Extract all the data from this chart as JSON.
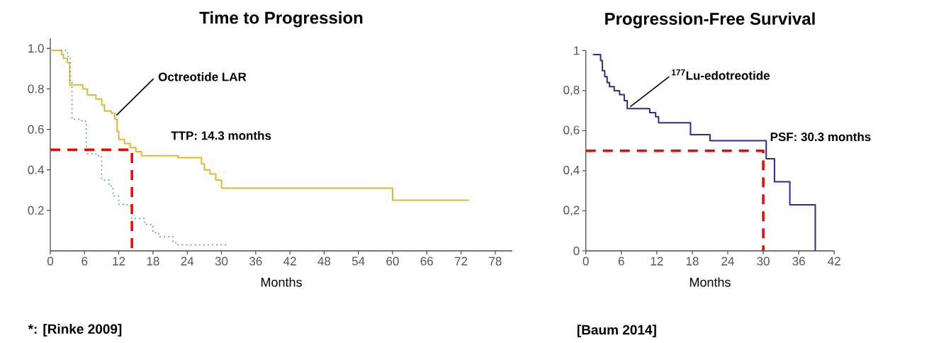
{
  "chart_data": [
    {
      "type": "step",
      "title": "Time to Progression",
      "xlabel": "Months",
      "xlim": [
        0,
        81
      ],
      "xticks": [
        0,
        6,
        12,
        18,
        24,
        30,
        36,
        42,
        48,
        54,
        60,
        66,
        72,
        78
      ],
      "ylim": [
        0,
        1.05
      ],
      "yticks": [
        0.2,
        0.4,
        0.6,
        0.8,
        {
          "value": 1,
          "label": "1.0"
        }
      ],
      "annotations": [
        "TTP: 14.3 months",
        "*: [Rinke 2009]"
      ],
      "series": [
        {
          "name": "Octreotide LAR",
          "color": "#e3b82f",
          "x": [
            0,
            2,
            2.3,
            3,
            3.4,
            5.7,
            6.5,
            8,
            9,
            9.5,
            10.7,
            11.3,
            11.7,
            12,
            13,
            14,
            15,
            16,
            22.4,
            26.5,
            27,
            28,
            29,
            30,
            60,
            73.4
          ],
          "values": [
            0.99,
            0.97,
            0.95,
            0.93,
            0.82,
            0.8,
            0.77,
            0.75,
            0.72,
            0.69,
            0.68,
            0.65,
            0.59,
            0.55,
            0.53,
            0.51,
            0.49,
            0.47,
            0.46,
            0.43,
            0.4,
            0.38,
            0.35,
            0.31,
            0.25,
            0.25
          ]
        },
        {
          "color": "#5b9bc0",
          "line_style": "dotted",
          "x": [
            1.9,
            3,
            3.5,
            3.8,
            5.5,
            6.3,
            8,
            9,
            10.3,
            11,
            12,
            13.5,
            14.2,
            16.5,
            18,
            19,
            21.5,
            22,
            30.9
          ],
          "values": [
            0.99,
            0.96,
            0.83,
            0.65,
            0.64,
            0.48,
            0.47,
            0.35,
            0.32,
            0.27,
            0.23,
            0.22,
            0.16,
            0.13,
            0.09,
            0.07,
            0.04,
            0.03,
            0.03
          ]
        },
        {
          "type": "line",
          "color": "#ff0000",
          "line_style": "dashed",
          "x": [
            0,
            14.3,
            14.3
          ],
          "values": [
            0.5,
            0.5,
            0
          ]
        }
      ]
    },
    {
      "type": "step",
      "title": "Progression-Free Survival",
      "xlabel": "Months",
      "xlim": [
        0,
        42
      ],
      "xticks": [
        0,
        6,
        12,
        18,
        24,
        30,
        36,
        42
      ],
      "ylim": [
        0,
        1
      ],
      "yticks": [
        0,
        {
          "value": 0.2,
          "label": "0,2"
        },
        {
          "value": 0.4,
          "label": "0,4"
        },
        {
          "value": 0.6,
          "label": "0,6"
        },
        {
          "value": 0.8,
          "label": "0,8"
        },
        1
      ],
      "annotations": [
        "PSF: 30.3 months",
        "[Baum 2014]"
      ],
      "series": [
        {
          "name": "$^{177}$Lu-edotreotide",
          "color": "#2b2f86",
          "x": [
            1.2,
            2.5,
            2.8,
            3.2,
            3.6,
            4.0,
            4.8,
            5.7,
            6.5,
            7.0,
            10.8,
            11.8,
            12.3,
            17.7,
            21,
            30.5,
            31.9,
            34.5,
            38.8,
            38.8
          ],
          "values": [
            0.98,
            0.95,
            0.9,
            0.87,
            0.84,
            0.82,
            0.8,
            0.78,
            0.75,
            0.71,
            0.69,
            0.67,
            0.64,
            0.58,
            0.55,
            0.46,
            0.345,
            0.23,
            0.23,
            0
          ]
        },
        {
          "type": "line",
          "color": "#ff0000",
          "line_style": "dashed",
          "x": [
            0,
            30,
            30
          ],
          "values": [
            0.5,
            0.5,
            0
          ]
        }
      ]
    }
  ]
}
